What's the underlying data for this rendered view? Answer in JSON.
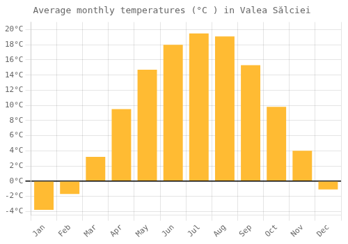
{
  "chart_data": {
    "type": "bar",
    "title": "Average monthly temperatures (°C ) in Valea Sălciei",
    "categories": [
      "Jan",
      "Feb",
      "Mar",
      "Apr",
      "May",
      "Jun",
      "Jul",
      "Aug",
      "Sep",
      "Oct",
      "Nov",
      "Dec"
    ],
    "values": [
      -3.8,
      -1.7,
      3.2,
      9.5,
      14.7,
      18.0,
      19.5,
      19.1,
      15.3,
      9.8,
      4.0,
      -1.1
    ],
    "color": "#FFBB33",
    "ylim": [
      -4.5,
      21
    ],
    "yticks": [
      {
        "value": -4,
        "label": "-4°C"
      },
      {
        "value": -2,
        "label": "-2°C"
      },
      {
        "value": 0,
        "label": "0°C"
      },
      {
        "value": 2,
        "label": "2°C"
      },
      {
        "value": 4,
        "label": "4°C"
      },
      {
        "value": 6,
        "label": "6°C"
      },
      {
        "value": 8,
        "label": "8°C"
      },
      {
        "value": 10,
        "label": "10°C"
      },
      {
        "value": 12,
        "label": "12°C"
      },
      {
        "value": 14,
        "label": "14°C"
      },
      {
        "value": 16,
        "label": "16°C"
      },
      {
        "value": 18,
        "label": "18°C"
      },
      {
        "value": 20,
        "label": "20°C"
      }
    ],
    "grid": true
  }
}
